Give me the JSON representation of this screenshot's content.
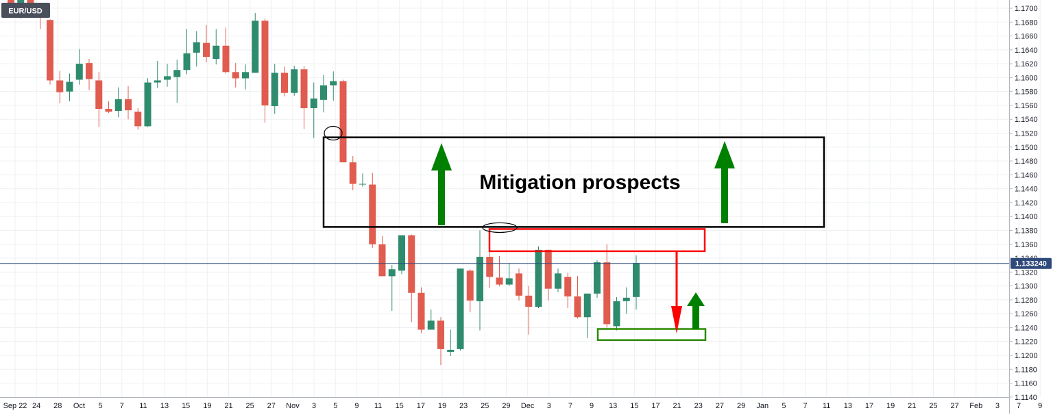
{
  "chart_data": {
    "type": "candlestick",
    "symbol": "EUR/USD",
    "ylim": [
      1.114,
      1.171
    ],
    "y_ticks": [
      "1.1700",
      "1.1680",
      "1.1660",
      "1.1640",
      "1.1620",
      "1.1600",
      "1.1580",
      "1.1560",
      "1.1540",
      "1.1520",
      "1.1500",
      "1.1480",
      "1.1460",
      "1.1440",
      "1.1420",
      "1.1400",
      "1.1380",
      "1.1360",
      "1.1340",
      "1.1320",
      "1.1300",
      "1.1280",
      "1.1260",
      "1.1240",
      "1.1220",
      "1.1200",
      "1.1180",
      "1.1160",
      "1.1140"
    ],
    "x_ticks": [
      "Sep 22",
      "24",
      "28",
      "Oct",
      "5",
      "7",
      "11",
      "13",
      "15",
      "19",
      "21",
      "25",
      "27",
      "Nov",
      "3",
      "5",
      "9",
      "11",
      "15",
      "17",
      "19",
      "23",
      "25",
      "29",
      "Dec",
      "3",
      "7",
      "9",
      "13",
      "15",
      "17",
      "21",
      "23",
      "27",
      "29",
      "Jan",
      "5",
      "7",
      "11",
      "13",
      "17",
      "19",
      "21",
      "25",
      "27",
      "Feb",
      "3",
      "7",
      "9"
    ],
    "current_price": 1.13324,
    "current_price_label": "1.133240",
    "colors": {
      "up": "#2e8b6e",
      "down": "#e05c4f",
      "grid": "#eef0f3",
      "price_line": "#2f4a7a",
      "price_badge": "#2f4a7a",
      "zone_box": "#000000",
      "resistance_box": "#ff0000",
      "support_box": "#2a8a00",
      "arrow_up": "#008000",
      "arrow_down": "#ff0000"
    },
    "candles": [
      {
        "o": 1.1725,
        "h": 1.1729,
        "l": 1.1688,
        "c": 1.1699
      },
      {
        "o": 1.1693,
        "h": 1.1731,
        "l": 1.1685,
        "c": 1.1735
      },
      {
        "o": 1.172,
        "h": 1.1745,
        "l": 1.169,
        "c": 1.1695
      },
      {
        "o": 1.1703,
        "h": 1.1707,
        "l": 1.167,
        "c": 1.169
      },
      {
        "o": 1.1683,
        "h": 1.1684,
        "l": 1.159,
        "c": 1.1596
      },
      {
        "o": 1.1596,
        "h": 1.161,
        "l": 1.1563,
        "c": 1.1579
      },
      {
        "o": 1.158,
        "h": 1.1606,
        "l": 1.1566,
        "c": 1.1594
      },
      {
        "o": 1.1597,
        "h": 1.1641,
        "l": 1.159,
        "c": 1.162
      },
      {
        "o": 1.1621,
        "h": 1.1627,
        "l": 1.1582,
        "c": 1.1598
      },
      {
        "o": 1.1596,
        "h": 1.1608,
        "l": 1.1529,
        "c": 1.1555
      },
      {
        "o": 1.1555,
        "h": 1.1566,
        "l": 1.1549,
        "c": 1.1551
      },
      {
        "o": 1.1552,
        "h": 1.1586,
        "l": 1.1543,
        "c": 1.1569
      },
      {
        "o": 1.1569,
        "h": 1.1588,
        "l": 1.154,
        "c": 1.1553
      },
      {
        "o": 1.1551,
        "h": 1.1556,
        "l": 1.1525,
        "c": 1.153
      },
      {
        "o": 1.153,
        "h": 1.1599,
        "l": 1.1529,
        "c": 1.1593
      },
      {
        "o": 1.1593,
        "h": 1.1624,
        "l": 1.1585,
        "c": 1.1596
      },
      {
        "o": 1.1597,
        "h": 1.162,
        "l": 1.1587,
        "c": 1.1602
      },
      {
        "o": 1.1601,
        "h": 1.1626,
        "l": 1.1564,
        "c": 1.1611
      },
      {
        "o": 1.1611,
        "h": 1.167,
        "l": 1.1605,
        "c": 1.1635
      },
      {
        "o": 1.1636,
        "h": 1.1667,
        "l": 1.1616,
        "c": 1.1651
      },
      {
        "o": 1.165,
        "h": 1.1676,
        "l": 1.1622,
        "c": 1.163
      },
      {
        "o": 1.1627,
        "h": 1.167,
        "l": 1.1619,
        "c": 1.1646
      },
      {
        "o": 1.1646,
        "h": 1.1672,
        "l": 1.1606,
        "c": 1.1608
      },
      {
        "o": 1.1608,
        "h": 1.1621,
        "l": 1.1586,
        "c": 1.1599
      },
      {
        "o": 1.1599,
        "h": 1.1619,
        "l": 1.1583,
        "c": 1.1608
      },
      {
        "o": 1.1607,
        "h": 1.1693,
        "l": 1.1607,
        "c": 1.1682
      },
      {
        "o": 1.1682,
        "h": 1.1685,
        "l": 1.1535,
        "c": 1.156
      },
      {
        "o": 1.1559,
        "h": 1.162,
        "l": 1.1548,
        "c": 1.1607
      },
      {
        "o": 1.1607,
        "h": 1.1616,
        "l": 1.1573,
        "c": 1.1578
      },
      {
        "o": 1.1578,
        "h": 1.1617,
        "l": 1.1574,
        "c": 1.1612
      },
      {
        "o": 1.1612,
        "h": 1.1617,
        "l": 1.1526,
        "c": 1.1556
      },
      {
        "o": 1.1556,
        "h": 1.1593,
        "l": 1.1513,
        "c": 1.157
      },
      {
        "o": 1.1568,
        "h": 1.1604,
        "l": 1.155,
        "c": 1.1589
      },
      {
        "o": 1.1589,
        "h": 1.1609,
        "l": 1.1567,
        "c": 1.1595
      },
      {
        "o": 1.1595,
        "h": 1.1597,
        "l": 1.148,
        "c": 1.1478
      },
      {
        "o": 1.1478,
        "h": 1.1487,
        "l": 1.1438,
        "c": 1.1447
      },
      {
        "o": 1.1447,
        "h": 1.1462,
        "l": 1.1443,
        "c": 1.1447
      },
      {
        "o": 1.1446,
        "h": 1.1463,
        "l": 1.1355,
        "c": 1.136
      },
      {
        "o": 1.136,
        "h": 1.1372,
        "l": 1.1314,
        "c": 1.1314
      },
      {
        "o": 1.1314,
        "h": 1.133,
        "l": 1.1264,
        "c": 1.1324
      },
      {
        "o": 1.1322,
        "h": 1.1373,
        "l": 1.1317,
        "c": 1.1373
      },
      {
        "o": 1.1373,
        "h": 1.1374,
        "l": 1.1248,
        "c": 1.129
      },
      {
        "o": 1.129,
        "h": 1.1298,
        "l": 1.1232,
        "c": 1.1237
      },
      {
        "o": 1.1237,
        "h": 1.1266,
        "l": 1.1237,
        "c": 1.125
      },
      {
        "o": 1.125,
        "h": 1.1255,
        "l": 1.1186,
        "c": 1.1209
      },
      {
        "o": 1.1205,
        "h": 1.1237,
        "l": 1.1199,
        "c": 1.1208
      },
      {
        "o": 1.1209,
        "h": 1.1325,
        "l": 1.1207,
        "c": 1.1325
      },
      {
        "o": 1.1322,
        "h": 1.1324,
        "l": 1.1262,
        "c": 1.1279
      },
      {
        "o": 1.1278,
        "h": 1.138,
        "l": 1.1236,
        "c": 1.1342
      },
      {
        "o": 1.1342,
        "h": 1.135,
        "l": 1.1297,
        "c": 1.1313
      },
      {
        "o": 1.1312,
        "h": 1.1343,
        "l": 1.13,
        "c": 1.1302
      },
      {
        "o": 1.1302,
        "h": 1.1333,
        "l": 1.13,
        "c": 1.1311
      },
      {
        "o": 1.1318,
        "h": 1.1325,
        "l": 1.1279,
        "c": 1.1286
      },
      {
        "o": 1.1286,
        "h": 1.13,
        "l": 1.123,
        "c": 1.127
      },
      {
        "o": 1.127,
        "h": 1.1357,
        "l": 1.1268,
        "c": 1.1352
      },
      {
        "o": 1.1352,
        "h": 1.1352,
        "l": 1.1279,
        "c": 1.1296
      },
      {
        "o": 1.1296,
        "h": 1.1325,
        "l": 1.1291,
        "c": 1.1318
      },
      {
        "o": 1.1313,
        "h": 1.1319,
        "l": 1.1268,
        "c": 1.1285
      },
      {
        "o": 1.1285,
        "h": 1.1314,
        "l": 1.1253,
        "c": 1.1255
      },
      {
        "o": 1.1255,
        "h": 1.1289,
        "l": 1.1225,
        "c": 1.1289
      },
      {
        "o": 1.1289,
        "h": 1.1337,
        "l": 1.1283,
        "c": 1.1334
      },
      {
        "o": 1.1334,
        "h": 1.136,
        "l": 1.124,
        "c": 1.1245
      },
      {
        "o": 1.1242,
        "h": 1.1284,
        "l": 1.1236,
        "c": 1.1278
      },
      {
        "o": 1.1278,
        "h": 1.1298,
        "l": 1.126,
        "c": 1.1283
      },
      {
        "o": 1.1284,
        "h": 1.1344,
        "l": 1.1266,
        "c": 1.1333
      }
    ],
    "annotations": {
      "label": "Mitigation prospects",
      "zone_box": {
        "y_top": 1.1514,
        "y_bottom": 1.1385
      },
      "resistance_box": {
        "y_top": 1.1382,
        "y_bottom": 1.135
      },
      "support_box": {
        "y_top": 1.1238,
        "y_bottom": 1.1222
      }
    }
  }
}
